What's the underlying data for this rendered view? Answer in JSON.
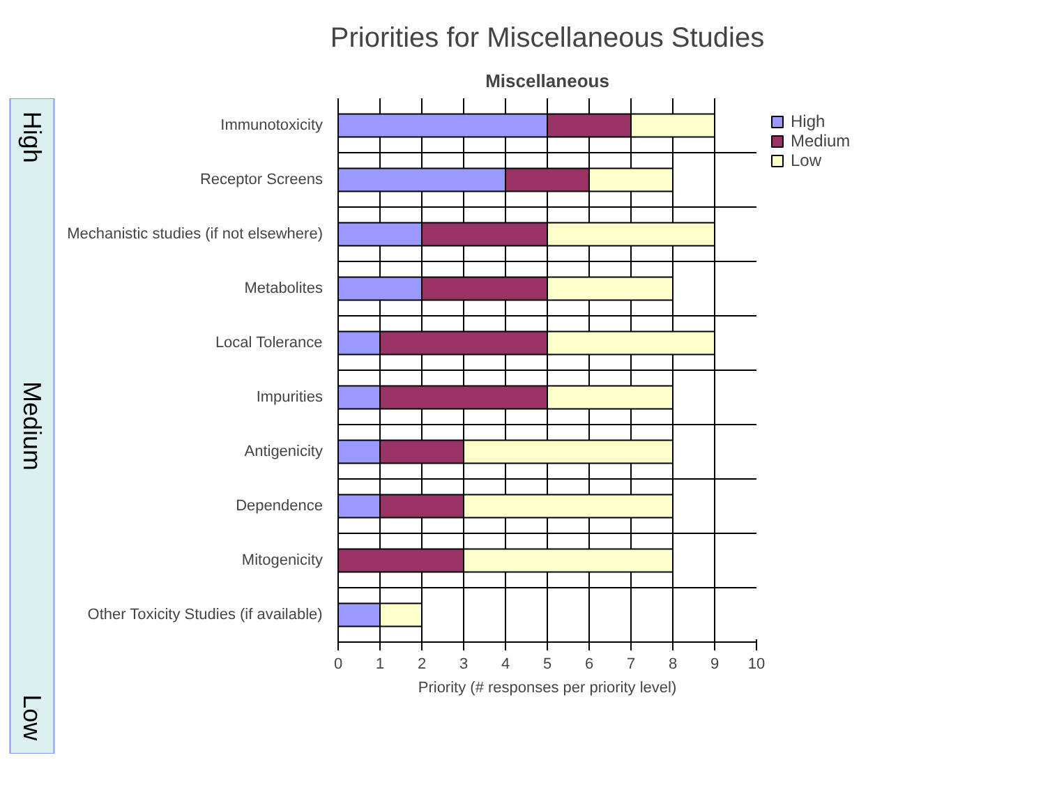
{
  "chart_data": {
    "type": "bar",
    "orientation": "horizontal",
    "stacked": true,
    "title": "Priorities for Miscellaneous Studies",
    "subtitle": "Miscellaneous",
    "xlabel": "Priority (# responses per priority level)",
    "categories": [
      "Immunotoxicity",
      "Receptor Screens",
      "Mechanistic studies (if not elsewhere)",
      "Metabolites",
      "Local Tolerance",
      "Impurities",
      "Antigenicity",
      "Dependence",
      "Mitogenicity",
      "Other Toxicity Studies (if available)"
    ],
    "series": [
      {
        "name": "High",
        "color": "#9999ff",
        "values": [
          5,
          4,
          2,
          2,
          1,
          1,
          1,
          1,
          0,
          1
        ]
      },
      {
        "name": "Medium",
        "color": "#993366",
        "values": [
          2,
          2,
          3,
          3,
          4,
          4,
          2,
          2,
          3,
          0
        ]
      },
      {
        "name": "Low",
        "color": "#ffffcc",
        "values": [
          2,
          2,
          4,
          3,
          4,
          3,
          5,
          5,
          5,
          1
        ]
      }
    ],
    "xlim": [
      0,
      10
    ],
    "xticks": [
      0,
      1,
      2,
      3,
      4,
      5,
      6,
      7,
      8,
      9,
      10
    ],
    "grid": true,
    "legend": "top right",
    "annotations": [
      "High",
      "Medium",
      "Low"
    ]
  }
}
